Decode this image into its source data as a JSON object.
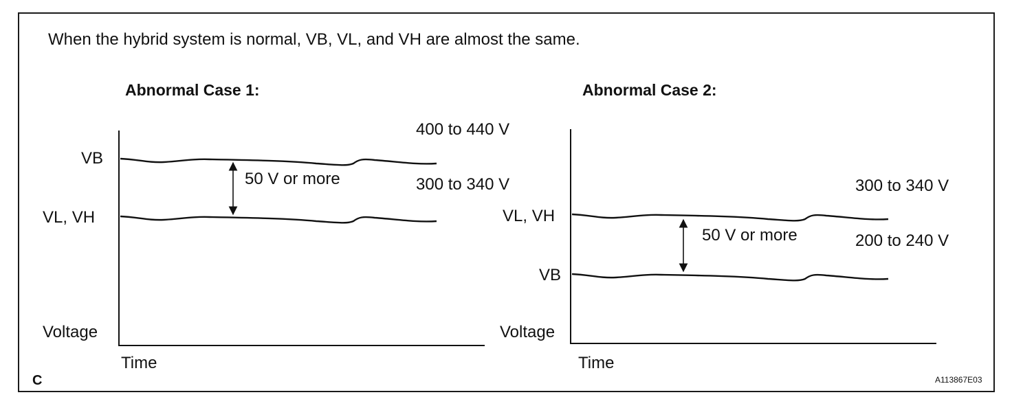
{
  "intro_text": "When the hybrid system is normal, VB, VL, and VH are almost the same.",
  "panel_letter": "C",
  "figure_code": "A113867E03",
  "cases": [
    {
      "title": "Abnormal Case 1:",
      "y_axis_label": "Voltage",
      "x_axis_label": "Time",
      "upper_line_label": "VB",
      "lower_line_label": "VL, VH",
      "upper_range": "400 to 440 V",
      "lower_range": "300 to 340 V",
      "difference": "50 V or more"
    },
    {
      "title": "Abnormal Case 2:",
      "y_axis_label": "Voltage",
      "x_axis_label": "Time",
      "upper_line_label": "VL, VH",
      "lower_line_label": "VB",
      "upper_range": "300 to 340 V",
      "lower_range": "200 to 240 V",
      "difference": "50 V or more"
    }
  ]
}
